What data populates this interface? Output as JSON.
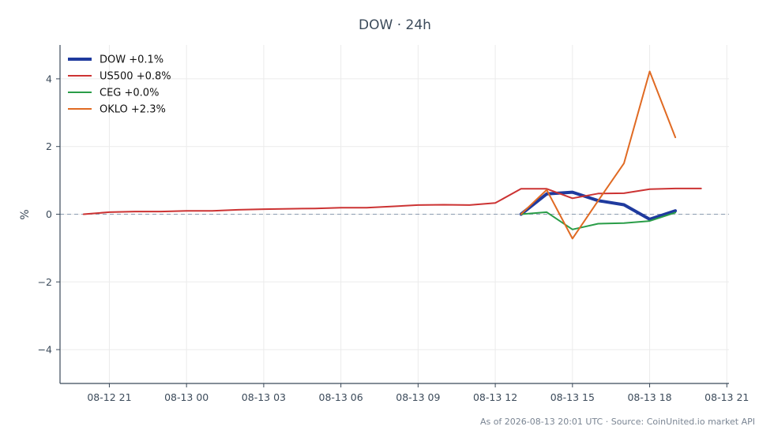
{
  "chart_data": {
    "type": "line",
    "title": "DOW · 24h",
    "xlabel": "",
    "ylabel": "%",
    "x_ticks": [
      "08-12 21",
      "08-13 00",
      "08-13 03",
      "08-13 06",
      "08-13 09",
      "08-13 12",
      "08-13 15",
      "08-13 18",
      "08-13 21"
    ],
    "y_ticks": [
      "4",
      "2",
      "0",
      "−2",
      "−4"
    ],
    "y_tick_values": [
      4,
      2,
      0,
      -2,
      -4
    ],
    "xlim": [
      "08-12 19:05",
      "08-13 21:05"
    ],
    "ylim": [
      -5,
      5
    ],
    "grid": true,
    "zero_line": true,
    "legend_position": "top-left",
    "series": [
      {
        "name": "DOW +0.1%",
        "color": "#1f3a9e",
        "width": 4,
        "x": [
          "08-13 13:00",
          "08-13 14:00",
          "08-13 15:00",
          "08-13 16:00",
          "08-13 17:00",
          "08-13 18:00",
          "08-13 19:00"
        ],
        "y": [
          0.0,
          0.6,
          0.65,
          0.4,
          0.28,
          -0.15,
          0.1
        ]
      },
      {
        "name": "US500 +0.8%",
        "color": "#cc3333",
        "width": 2,
        "x": [
          "08-12 20:00",
          "08-12 21:00",
          "08-12 22:00",
          "08-12 23:00",
          "08-13 00:00",
          "08-13 01:00",
          "08-13 02:00",
          "08-13 03:00",
          "08-13 04:00",
          "08-13 05:00",
          "08-13 06:00",
          "08-13 07:00",
          "08-13 08:00",
          "08-13 09:00",
          "08-13 10:00",
          "08-13 11:00",
          "08-13 12:00",
          "08-13 13:00",
          "08-13 14:00",
          "08-13 15:00",
          "08-13 16:00",
          "08-13 17:00",
          "08-13 18:00",
          "08-13 19:00",
          "08-13 20:00"
        ],
        "y": [
          0.0,
          0.06,
          0.08,
          0.08,
          0.1,
          0.1,
          0.13,
          0.15,
          0.16,
          0.17,
          0.19,
          0.19,
          0.23,
          0.27,
          0.28,
          0.27,
          0.33,
          0.75,
          0.75,
          0.47,
          0.61,
          0.62,
          0.74,
          0.76,
          0.76
        ]
      },
      {
        "name": "CEG +0.0%",
        "color": "#2a9d48",
        "width": 2,
        "x": [
          "08-13 13:00",
          "08-13 14:00",
          "08-13 15:00",
          "08-13 16:00",
          "08-13 17:00",
          "08-13 18:00",
          "08-13 19:00"
        ],
        "y": [
          0.0,
          0.06,
          -0.45,
          -0.28,
          -0.26,
          -0.2,
          0.05
        ]
      },
      {
        "name": "OKLO +2.3%",
        "color": "#e06a23",
        "width": 2,
        "x": [
          "08-13 13:00",
          "08-13 14:00",
          "08-13 15:00",
          "08-13 16:00",
          "08-13 17:00",
          "08-13 18:00",
          "08-13 19:00"
        ],
        "y": [
          0.0,
          0.72,
          -0.72,
          0.4,
          1.5,
          4.22,
          2.27
        ]
      }
    ]
  },
  "footer": "As of 2026-08-13 20:01 UTC · Source: CoinUnited.io market API"
}
